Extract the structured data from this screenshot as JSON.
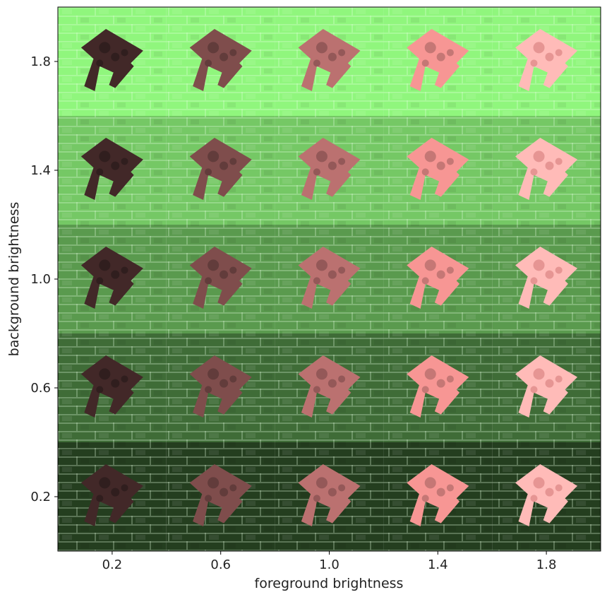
{
  "chart_data": {
    "type": "image-grid",
    "xlabel": "foreground brightness",
    "ylabel": "background brightness",
    "x_ticks": [
      "0.2",
      "0.6",
      "1.0",
      "1.4",
      "1.8"
    ],
    "y_ticks": [
      "0.2",
      "0.6",
      "1.0",
      "1.4",
      "1.8"
    ],
    "x_values": [
      0.2,
      0.6,
      1.0,
      1.4,
      1.8
    ],
    "y_values": [
      0.2,
      0.6,
      1.0,
      1.4,
      1.8
    ],
    "xlim": [
      0.0,
      2.0
    ],
    "ylim": [
      2.0,
      0.0
    ],
    "background_base_color": "#5a9a4e",
    "foreground_base_color": "#c97a78",
    "mortar_color": "#e6ffe0"
  }
}
